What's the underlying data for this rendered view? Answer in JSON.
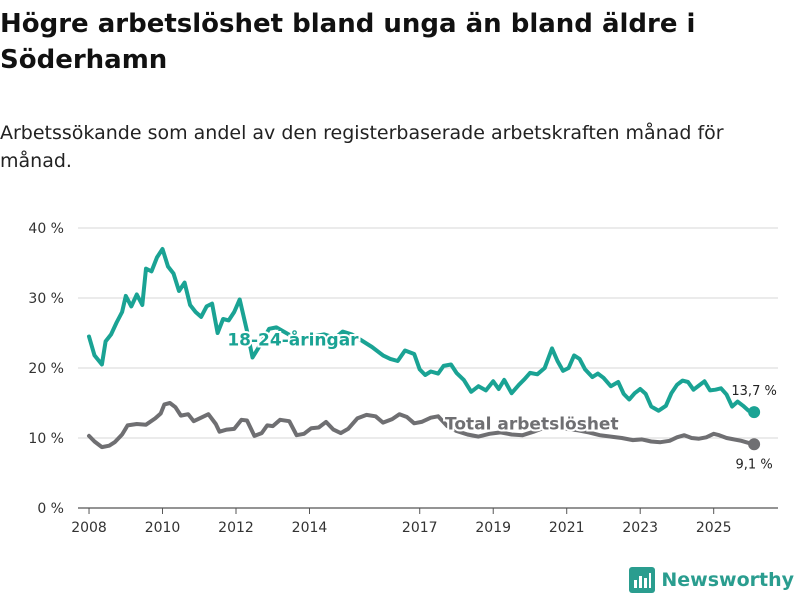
{
  "header": {
    "title": "Högre arbetslöshet bland unga än bland äldre i Söderhamn",
    "subtitle": "Arbetssökande som andel av den registerbaserade arbetskraften månad för månad."
  },
  "brand": {
    "name": "Newsworthy",
    "color": "#2a9d8f"
  },
  "chart_data": {
    "type": "line",
    "title": "Högre arbetslöshet bland unga än bland äldre i Söderhamn",
    "xlabel": "",
    "ylabel": "",
    "ylim": [
      0,
      40
    ],
    "xlim": [
      2007.7,
      2026.75
    ],
    "y_ticks": [
      0,
      10,
      20,
      30,
      40
    ],
    "y_tick_labels": [
      "0 %",
      "10 %",
      "20 %",
      "30 %",
      "40 %"
    ],
    "x_ticks": [
      2008,
      2010,
      2012,
      2014,
      2017,
      2019,
      2021,
      2023,
      2025
    ],
    "x_tick_labels": [
      "2008",
      "2010",
      "2012",
      "2014",
      "2017",
      "2019",
      "2021",
      "2023",
      "2025"
    ],
    "grid": "horizontal",
    "series": [
      {
        "name": "18-24-åringar",
        "color": "#1aa394",
        "end_label": "13,7 %",
        "points": [
          [
            2008.0,
            24.5
          ],
          [
            2008.15,
            21.8
          ],
          [
            2008.35,
            20.5
          ],
          [
            2008.45,
            23.8
          ],
          [
            2008.6,
            24.8
          ],
          [
            2008.75,
            26.5
          ],
          [
            2008.9,
            28.0
          ],
          [
            2009.0,
            30.3
          ],
          [
            2009.15,
            28.8
          ],
          [
            2009.3,
            30.5
          ],
          [
            2009.45,
            29.0
          ],
          [
            2009.55,
            34.2
          ],
          [
            2009.7,
            33.8
          ],
          [
            2009.85,
            35.8
          ],
          [
            2010.0,
            37.0
          ],
          [
            2010.15,
            34.5
          ],
          [
            2010.3,
            33.5
          ],
          [
            2010.45,
            31.0
          ],
          [
            2010.6,
            32.2
          ],
          [
            2010.75,
            29.0
          ],
          [
            2010.9,
            28.0
          ],
          [
            2011.05,
            27.3
          ],
          [
            2011.2,
            28.8
          ],
          [
            2011.35,
            29.2
          ],
          [
            2011.5,
            25.0
          ],
          [
            2011.65,
            27.0
          ],
          [
            2011.8,
            26.8
          ],
          [
            2011.95,
            28.0
          ],
          [
            2012.1,
            29.8
          ],
          [
            2012.3,
            25.3
          ],
          [
            2012.45,
            21.5
          ],
          [
            2012.6,
            22.8
          ],
          [
            2012.75,
            24.2
          ],
          [
            2012.9,
            25.6
          ],
          [
            2013.1,
            25.8
          ],
          [
            2013.3,
            25.2
          ],
          [
            2013.5,
            24.6
          ],
          [
            2013.7,
            24.0
          ],
          [
            2013.9,
            24.4
          ],
          [
            2014.1,
            24.5
          ],
          [
            2014.4,
            24.8
          ],
          [
            2014.7,
            24.3
          ],
          [
            2014.9,
            25.2
          ],
          [
            2015.15,
            24.8
          ],
          [
            2015.4,
            24.0
          ],
          [
            2015.7,
            23.0
          ],
          [
            2016.0,
            21.8
          ],
          [
            2016.2,
            21.3
          ],
          [
            2016.4,
            21.0
          ],
          [
            2016.6,
            22.5
          ],
          [
            2016.85,
            22.0
          ],
          [
            2017.0,
            19.8
          ],
          [
            2017.15,
            19.0
          ],
          [
            2017.3,
            19.5
          ],
          [
            2017.5,
            19.2
          ],
          [
            2017.65,
            20.3
          ],
          [
            2017.85,
            20.5
          ],
          [
            2018.0,
            19.3
          ],
          [
            2018.2,
            18.3
          ],
          [
            2018.4,
            16.6
          ],
          [
            2018.6,
            17.4
          ],
          [
            2018.8,
            16.8
          ],
          [
            2019.0,
            18.1
          ],
          [
            2019.15,
            17.0
          ],
          [
            2019.3,
            18.3
          ],
          [
            2019.5,
            16.4
          ],
          [
            2019.7,
            17.6
          ],
          [
            2019.85,
            18.4
          ],
          [
            2020.0,
            19.3
          ],
          [
            2020.2,
            19.1
          ],
          [
            2020.4,
            20.0
          ],
          [
            2020.6,
            22.8
          ],
          [
            2020.75,
            21.0
          ],
          [
            2020.9,
            19.6
          ],
          [
            2021.05,
            20.0
          ],
          [
            2021.2,
            21.8
          ],
          [
            2021.35,
            21.3
          ],
          [
            2021.5,
            19.8
          ],
          [
            2021.7,
            18.7
          ],
          [
            2021.85,
            19.2
          ],
          [
            2022.0,
            18.6
          ],
          [
            2022.2,
            17.4
          ],
          [
            2022.4,
            18.0
          ],
          [
            2022.55,
            16.3
          ],
          [
            2022.7,
            15.5
          ],
          [
            2022.85,
            16.4
          ],
          [
            2023.0,
            17.0
          ],
          [
            2023.15,
            16.3
          ],
          [
            2023.3,
            14.5
          ],
          [
            2023.5,
            13.9
          ],
          [
            2023.7,
            14.6
          ],
          [
            2023.85,
            16.4
          ],
          [
            2024.0,
            17.6
          ],
          [
            2024.15,
            18.2
          ],
          [
            2024.3,
            18.0
          ],
          [
            2024.45,
            16.9
          ],
          [
            2024.6,
            17.5
          ],
          [
            2024.75,
            18.1
          ],
          [
            2024.9,
            16.8
          ],
          [
            2025.05,
            16.9
          ],
          [
            2025.2,
            17.1
          ],
          [
            2025.35,
            16.2
          ],
          [
            2025.5,
            14.5
          ],
          [
            2025.65,
            15.2
          ],
          [
            2025.8,
            14.6
          ],
          [
            2025.95,
            13.9
          ],
          [
            2026.1,
            13.7
          ]
        ]
      },
      {
        "name": "Total arbetslöshet",
        "color": "#6f6f72",
        "end_label": "9,1 %",
        "points": [
          [
            2008.0,
            10.3
          ],
          [
            2008.15,
            9.5
          ],
          [
            2008.35,
            8.7
          ],
          [
            2008.55,
            8.9
          ],
          [
            2008.7,
            9.4
          ],
          [
            2008.9,
            10.5
          ],
          [
            2009.05,
            11.8
          ],
          [
            2009.3,
            12.0
          ],
          [
            2009.55,
            11.9
          ],
          [
            2009.8,
            12.8
          ],
          [
            2009.95,
            13.5
          ],
          [
            2010.05,
            14.8
          ],
          [
            2010.2,
            15.0
          ],
          [
            2010.35,
            14.4
          ],
          [
            2010.5,
            13.2
          ],
          [
            2010.7,
            13.4
          ],
          [
            2010.85,
            12.4
          ],
          [
            2011.05,
            12.9
          ],
          [
            2011.25,
            13.4
          ],
          [
            2011.45,
            12.0
          ],
          [
            2011.55,
            10.9
          ],
          [
            2011.75,
            11.2
          ],
          [
            2011.95,
            11.3
          ],
          [
            2012.15,
            12.6
          ],
          [
            2012.3,
            12.5
          ],
          [
            2012.5,
            10.3
          ],
          [
            2012.7,
            10.7
          ],
          [
            2012.85,
            11.8
          ],
          [
            2013.0,
            11.7
          ],
          [
            2013.2,
            12.6
          ],
          [
            2013.45,
            12.4
          ],
          [
            2013.65,
            10.4
          ],
          [
            2013.85,
            10.6
          ],
          [
            2014.05,
            11.4
          ],
          [
            2014.25,
            11.5
          ],
          [
            2014.45,
            12.3
          ],
          [
            2014.65,
            11.2
          ],
          [
            2014.85,
            10.7
          ],
          [
            2015.05,
            11.3
          ],
          [
            2015.3,
            12.8
          ],
          [
            2015.55,
            13.3
          ],
          [
            2015.8,
            13.1
          ],
          [
            2016.0,
            12.2
          ],
          [
            2016.25,
            12.7
          ],
          [
            2016.45,
            13.4
          ],
          [
            2016.65,
            13.0
          ],
          [
            2016.85,
            12.1
          ],
          [
            2017.05,
            12.3
          ],
          [
            2017.3,
            12.9
          ],
          [
            2017.5,
            13.1
          ],
          [
            2017.75,
            11.7
          ],
          [
            2018.0,
            11.0
          ],
          [
            2018.3,
            10.5
          ],
          [
            2018.6,
            10.2
          ],
          [
            2018.9,
            10.6
          ],
          [
            2019.2,
            10.8
          ],
          [
            2019.5,
            10.5
          ],
          [
            2019.8,
            10.4
          ],
          [
            2020.1,
            10.9
          ],
          [
            2020.4,
            11.5
          ],
          [
            2020.7,
            11.6
          ],
          [
            2021.0,
            11.3
          ],
          [
            2021.3,
            11.1
          ],
          [
            2021.6,
            10.8
          ],
          [
            2021.9,
            10.4
          ],
          [
            2022.2,
            10.2
          ],
          [
            2022.5,
            10.0
          ],
          [
            2022.8,
            9.7
          ],
          [
            2023.05,
            9.8
          ],
          [
            2023.3,
            9.5
          ],
          [
            2023.55,
            9.4
          ],
          [
            2023.8,
            9.6
          ],
          [
            2024.0,
            10.1
          ],
          [
            2024.2,
            10.4
          ],
          [
            2024.4,
            10.0
          ],
          [
            2024.6,
            9.9
          ],
          [
            2024.8,
            10.1
          ],
          [
            2025.0,
            10.6
          ],
          [
            2025.15,
            10.4
          ],
          [
            2025.35,
            10.0
          ],
          [
            2025.55,
            9.8
          ],
          [
            2025.75,
            9.6
          ],
          [
            2025.95,
            9.3
          ],
          [
            2026.1,
            9.1
          ]
        ]
      }
    ]
  }
}
